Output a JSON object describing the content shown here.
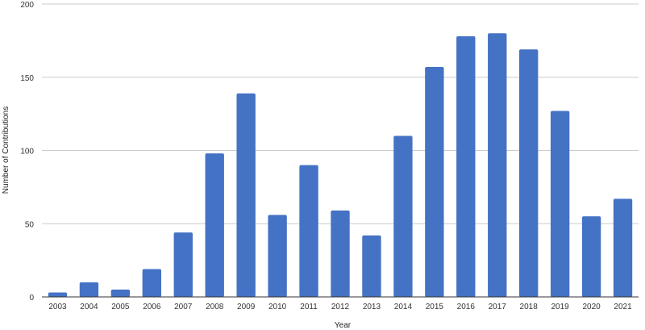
{
  "chart_data": {
    "type": "bar",
    "title": "",
    "xlabel": "Year",
    "ylabel": "Number of Contributions",
    "categories": [
      "2003",
      "2004",
      "2005",
      "2006",
      "2007",
      "2008",
      "2009",
      "2010",
      "2011",
      "2012",
      "2013",
      "2014",
      "2015",
      "2016",
      "2017",
      "2018",
      "2019",
      "2020",
      "2021"
    ],
    "values": [
      3,
      10,
      5,
      19,
      44,
      98,
      139,
      56,
      90,
      59,
      42,
      110,
      157,
      178,
      180,
      169,
      127,
      55,
      67
    ],
    "ylim": [
      0,
      200
    ],
    "yticks": [
      "0",
      "50",
      "100",
      "150",
      "200"
    ],
    "grid": true,
    "legend": "none",
    "colors": {
      "bar": "#4472c4",
      "grid": "#cccccc",
      "axis": "#333333",
      "text": "#333333"
    }
  }
}
